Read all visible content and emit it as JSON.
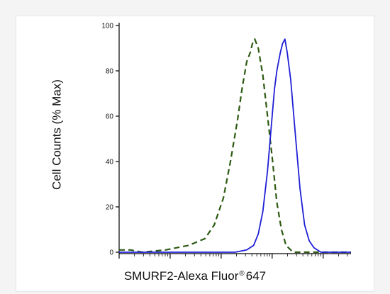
{
  "chart_data": {
    "type": "line",
    "title": "",
    "ylabel": "Cell Counts (% Max)",
    "xlabel": {
      "main": "SMURF2-Alexa Fluor",
      "mark": "®",
      "tail": "647"
    },
    "xscale": "log",
    "ylim": [
      0,
      100
    ],
    "yticks": [
      "0",
      "20",
      "40",
      "60",
      "80",
      "100"
    ],
    "grid": false,
    "legend": "none",
    "series": [
      {
        "style": "dashed",
        "color": "#2d5a12",
        "points": [
          [
            0.0,
            1
          ],
          [
            0.05,
            1
          ],
          [
            0.1,
            0
          ],
          [
            0.2,
            1
          ],
          [
            0.3,
            3
          ],
          [
            0.37,
            6
          ],
          [
            0.41,
            12
          ],
          [
            0.45,
            24
          ],
          [
            0.48,
            40
          ],
          [
            0.51,
            58
          ],
          [
            0.53,
            72
          ],
          [
            0.55,
            84
          ],
          [
            0.565,
            88
          ],
          [
            0.575,
            92
          ],
          [
            0.585,
            94
          ],
          [
            0.6,
            90
          ],
          [
            0.62,
            78
          ],
          [
            0.64,
            60
          ],
          [
            0.66,
            42
          ],
          [
            0.68,
            22
          ],
          [
            0.7,
            10
          ],
          [
            0.72,
            3
          ],
          [
            0.75,
            0
          ],
          [
            0.8,
            0
          ],
          [
            1.0,
            0
          ]
        ]
      },
      {
        "style": "solid",
        "color": "#1f1fd6",
        "points": [
          [
            0.0,
            0
          ],
          [
            0.5,
            0
          ],
          [
            0.55,
            1
          ],
          [
            0.58,
            3
          ],
          [
            0.6,
            8
          ],
          [
            0.62,
            18
          ],
          [
            0.64,
            36
          ],
          [
            0.66,
            60
          ],
          [
            0.67,
            72
          ],
          [
            0.68,
            80
          ],
          [
            0.695,
            88
          ],
          [
            0.705,
            92
          ],
          [
            0.715,
            94
          ],
          [
            0.725,
            88
          ],
          [
            0.74,
            76
          ],
          [
            0.76,
            52
          ],
          [
            0.78,
            28
          ],
          [
            0.8,
            12
          ],
          [
            0.82,
            5
          ],
          [
            0.84,
            2
          ],
          [
            0.87,
            0
          ],
          [
            1.0,
            0
          ]
        ]
      }
    ]
  }
}
